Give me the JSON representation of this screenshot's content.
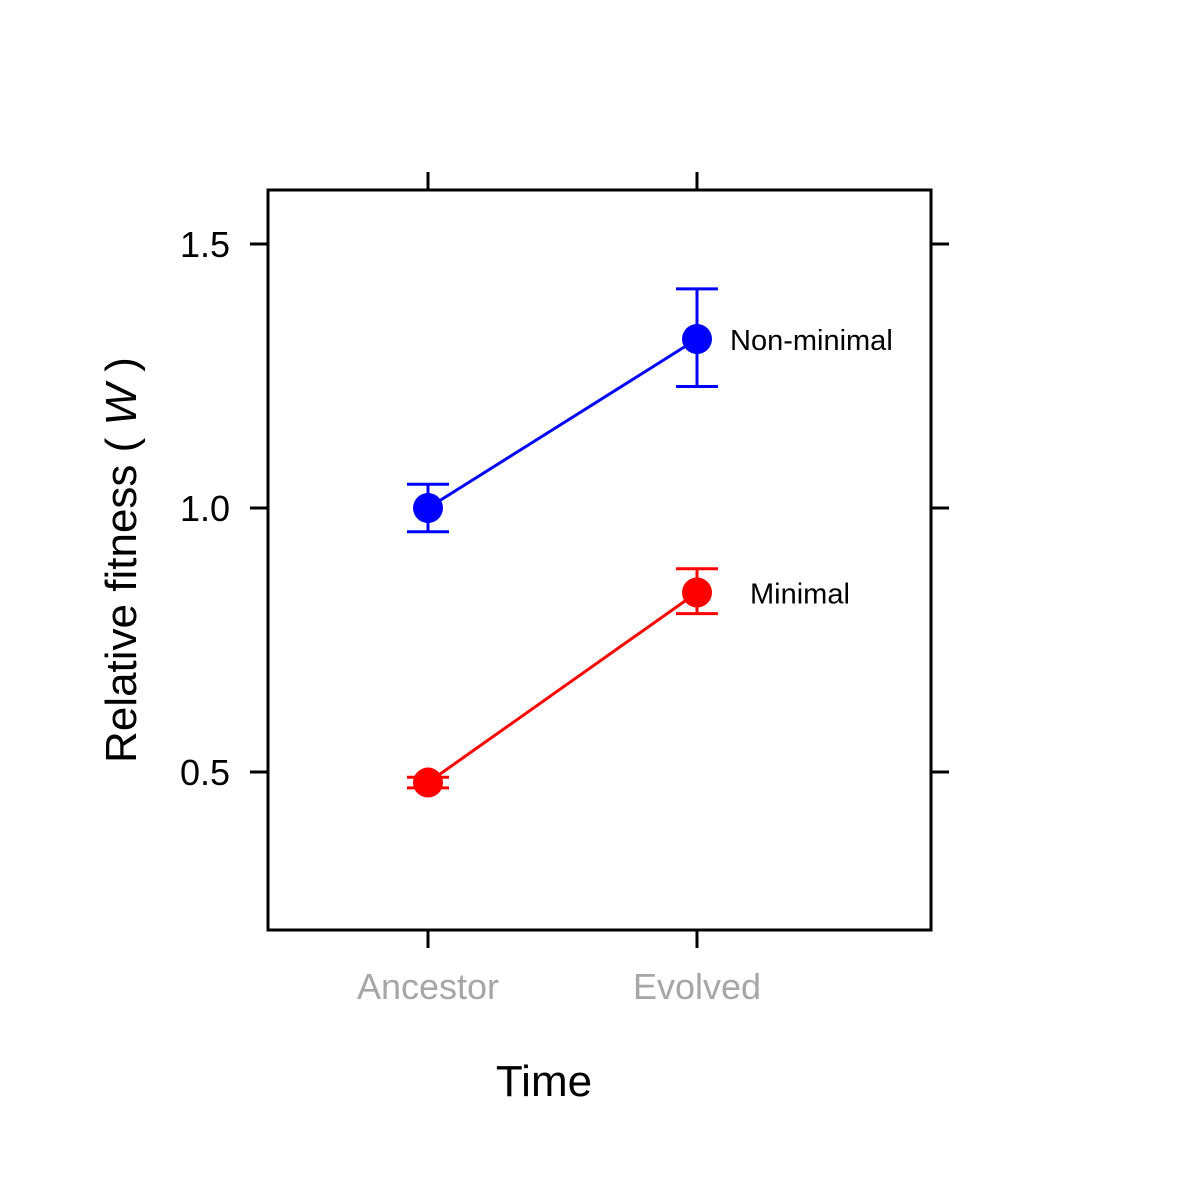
{
  "chart_data": {
    "type": "line",
    "xlabel": "Time",
    "ylabel_main": "Relative fitness",
    "ylabel_var": "W",
    "categories": [
      "Ancestor",
      "Evolved"
    ],
    "ylim": [
      0.2,
      1.6
    ],
    "yticks": [
      0.5,
      1.0,
      1.5
    ],
    "ytick_labels": [
      "0.5",
      "1.0",
      "1.5"
    ],
    "grid": false,
    "series": [
      {
        "name": "Non-minimal",
        "color": "#0000ff",
        "values": [
          1.0,
          1.32
        ],
        "err_low": [
          0.955,
          1.23
        ],
        "err_high": [
          1.045,
          1.415
        ]
      },
      {
        "name": "Minimal",
        "color": "#ff0000",
        "values": [
          0.48,
          0.84
        ],
        "err_low": [
          0.47,
          0.8
        ],
        "err_high": [
          0.49,
          0.885
        ]
      }
    ]
  }
}
